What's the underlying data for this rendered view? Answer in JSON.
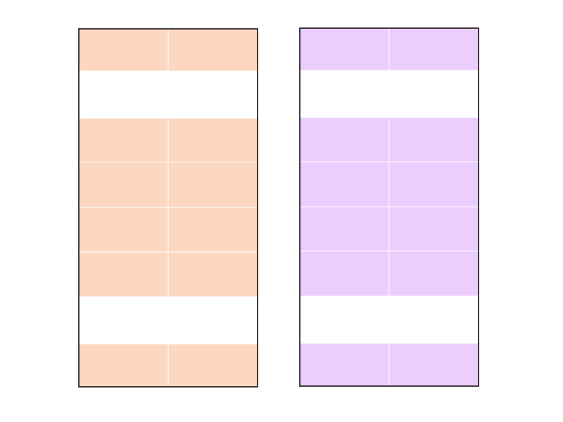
{
  "panels": [
    {
      "color": "#fdd7c0"
    },
    {
      "color": "#ebcdfe"
    }
  ]
}
